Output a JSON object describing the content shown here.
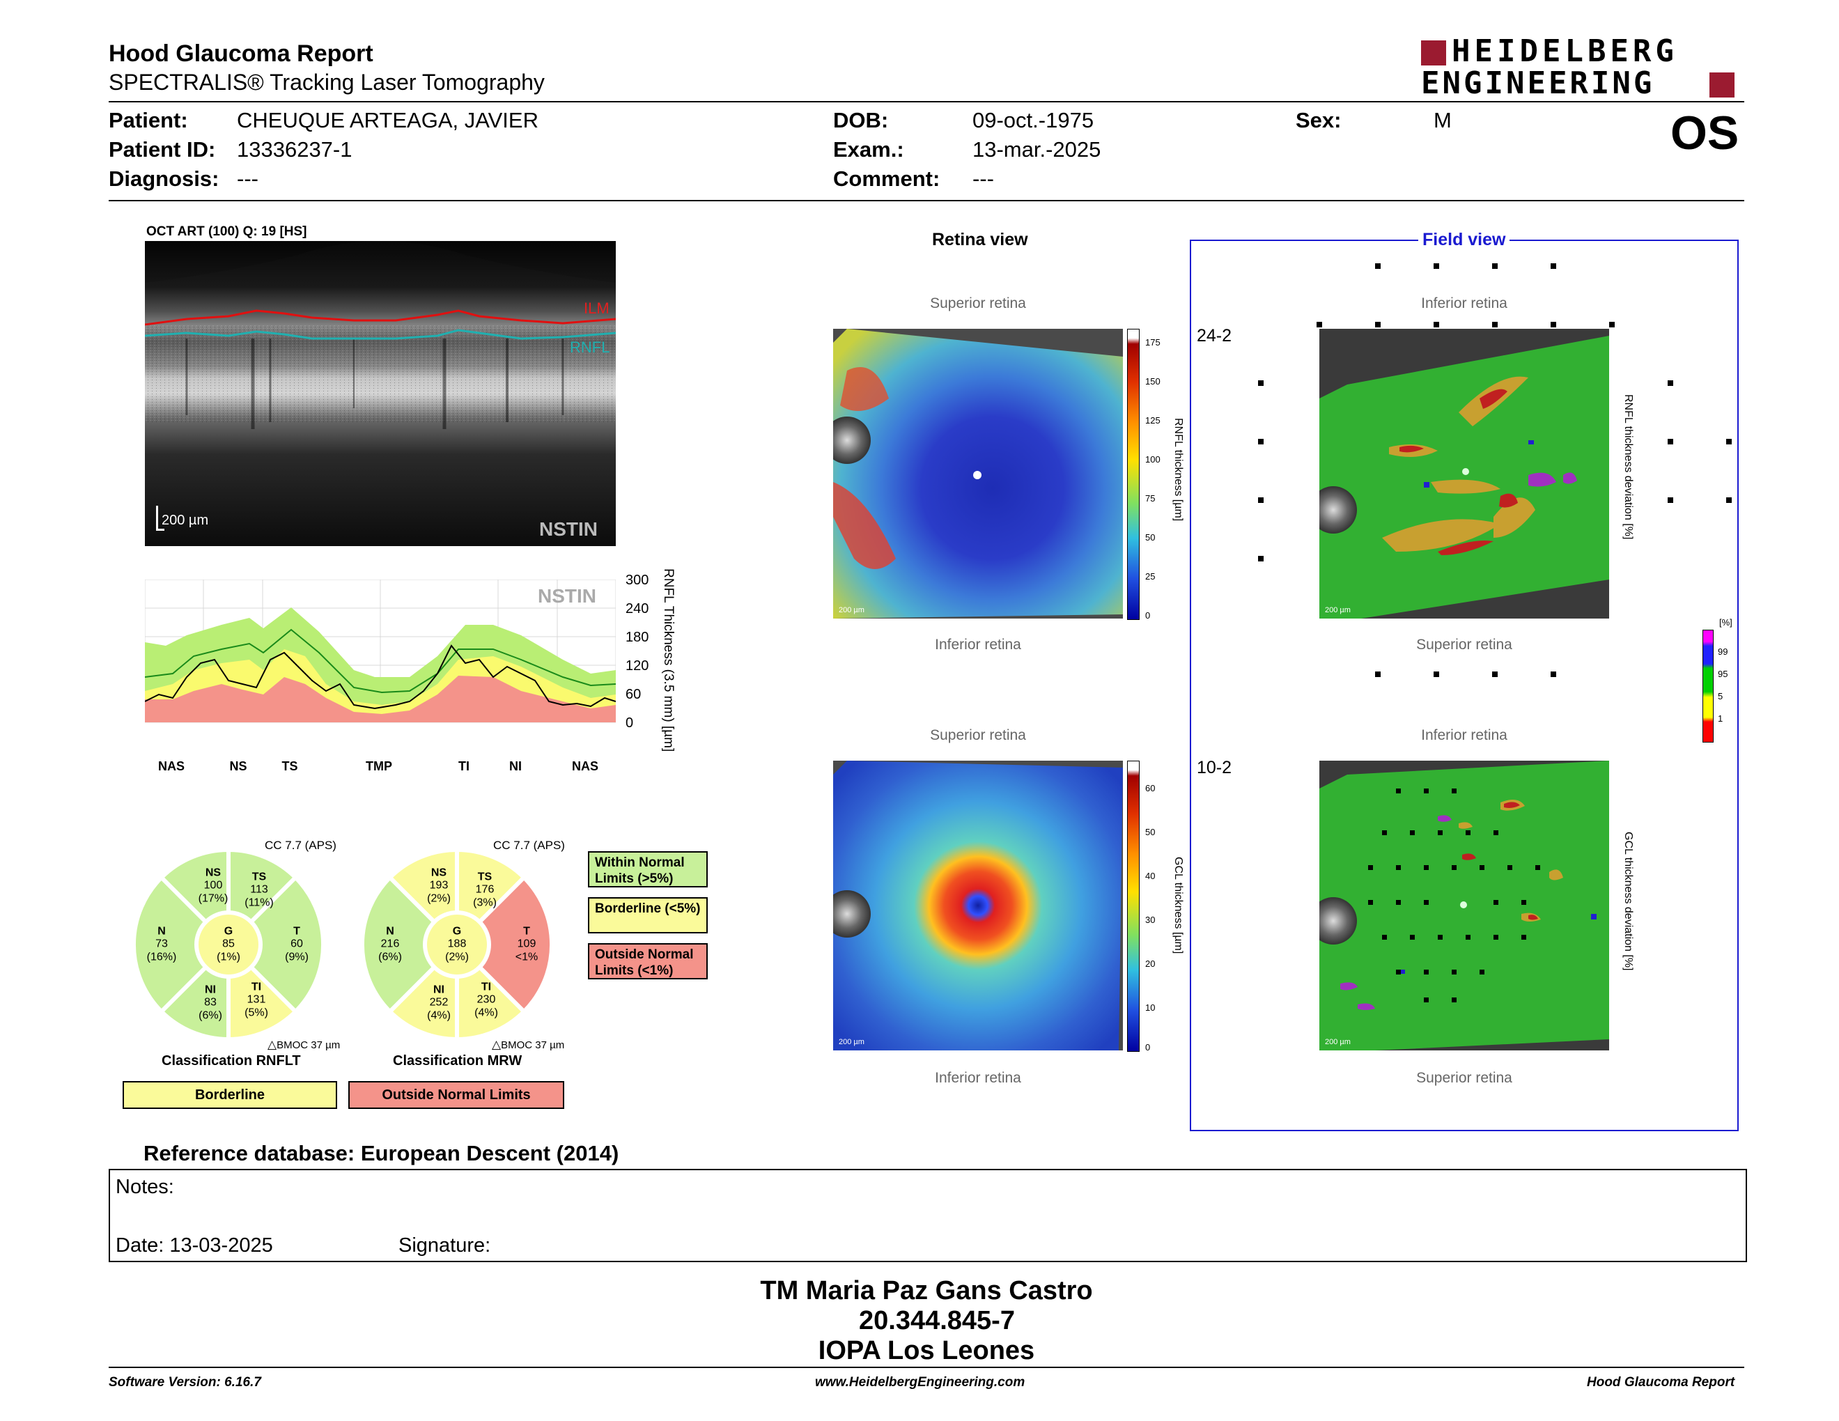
{
  "header": {
    "title": "Hood Glaucoma Report",
    "subtitle": "SPECTRALIS® Tracking Laser Tomography",
    "logo_line1": "HEIDELBERG",
    "logo_line2": "ENGINEERING",
    "eye": "OS"
  },
  "patient": {
    "patient_label": "Patient:",
    "patient_value": "CHEUQUE ARTEAGA, JAVIER",
    "id_label": "Patient ID:",
    "id_value": "13336237-1",
    "diagnosis_label": "Diagnosis:",
    "diagnosis_value": "---",
    "dob_label": "DOB:",
    "dob_value": "09-oct.-1975",
    "exam_label": "Exam.:",
    "exam_value": "13-mar.-2025",
    "comment_label": "Comment:",
    "comment_value": "---",
    "sex_label": "Sex:",
    "sex_value": "M"
  },
  "oct": {
    "header": "OCT ART (100) Q: 19 [HS]",
    "ilm": "ILM",
    "rnfl": "RNFL",
    "scale": "200 µm",
    "nstin": "NSTIN"
  },
  "profile": {
    "nstin": "NSTIN",
    "ylabel": "RNFL Thickness (3.5 mm) [µm]",
    "yticks": [
      "300",
      "240",
      "180",
      "120",
      "60",
      "0"
    ],
    "xlabels": [
      "NAS",
      "NS",
      "TS",
      "TMP",
      "TI",
      "NI",
      "NAS"
    ]
  },
  "rnflt": {
    "cc": "CC 7.7 (APS)",
    "bmo": "BMOC 37 µm",
    "classification_label": "Classification RNFLT",
    "result": "Borderline",
    "sectors": {
      "NS": {
        "name": "NS",
        "value": "100",
        "pct": "(17%)",
        "color": "#c8f09a"
      },
      "TS": {
        "name": "TS",
        "value": "113",
        "pct": "(11%)",
        "color": "#c8f09a"
      },
      "N": {
        "name": "N",
        "value": "73",
        "pct": "(16%)",
        "color": "#c8f09a"
      },
      "G": {
        "name": "G",
        "value": "85",
        "pct": "(1%)",
        "color": "#fafa9a"
      },
      "T": {
        "name": "T",
        "value": "60",
        "pct": "(9%)",
        "color": "#c8f09a"
      },
      "NI": {
        "name": "NI",
        "value": "83",
        "pct": "(6%)",
        "color": "#c8f09a"
      },
      "TI": {
        "name": "TI",
        "value": "131",
        "pct": "(5%)",
        "color": "#fafa9a"
      }
    }
  },
  "mrw": {
    "cc": "CC 7.7 (APS)",
    "bmo": "BMOC 37 µm",
    "classification_label": "Classification MRW",
    "result": "Outside Normal Limits",
    "sectors": {
      "NS": {
        "name": "NS",
        "value": "193",
        "pct": "(2%)",
        "color": "#fafa9a"
      },
      "TS": {
        "name": "TS",
        "value": "176",
        "pct": "(3%)",
        "color": "#fafa9a"
      },
      "N": {
        "name": "N",
        "value": "216",
        "pct": "(6%)",
        "color": "#c8f09a"
      },
      "G": {
        "name": "G",
        "value": "188",
        "pct": "(2%)",
        "color": "#fafa9a"
      },
      "T": {
        "name": "T",
        "value": "109",
        "pct": "<1%",
        "color": "#f4938a"
      },
      "NI": {
        "name": "NI",
        "value": "252",
        "pct": "(4%)",
        "color": "#fafa9a"
      },
      "TI": {
        "name": "TI",
        "value": "230",
        "pct": "(4%)",
        "color": "#fafa9a"
      }
    }
  },
  "legend": {
    "within": "Within Normal Limits (>5%)",
    "borderline": "Borderline (<5%)",
    "outside": "Outside Normal Limits (<1%)",
    "colors": {
      "within": "#c8f09a",
      "borderline": "#fafa9a",
      "outside": "#f4938a"
    }
  },
  "retina_view": {
    "title": "Retina view",
    "top_superior": "Superior retina",
    "top_inferior": "Inferior retina",
    "bottom_superior": "Superior retina",
    "bottom_inferior": "Inferior retina",
    "scale": "200 µm",
    "rnfl_axis": "RNFL thickness [µm]",
    "rnfl_ticks": [
      "175",
      "150",
      "125",
      "100",
      "75",
      "50",
      "25",
      "0"
    ],
    "gcl_axis": "GCL thickness [µm]",
    "gcl_ticks": [
      "60",
      "50",
      "40",
      "30",
      "20",
      "10",
      "0"
    ]
  },
  "field_view": {
    "title": "Field view",
    "label_242": "24-2",
    "label_102": "10-2",
    "top_inferior": "Inferior retina",
    "top_superior": "Superior retina",
    "bottom_inferior": "Inferior retina",
    "bottom_superior": "Superior retina",
    "scale": "200 µm",
    "rnfl_dev_axis": "RNFL thickness deviation [%]",
    "gcl_dev_axis": "GCL thickness deviation [%]",
    "pct_label": "[%]",
    "pct_ticks": [
      "99",
      "95",
      "5",
      "1"
    ]
  },
  "reference": "Reference database: European Descent (2014)",
  "notes": {
    "notes_label": "Notes:",
    "date_label": "Date: 13-03-2025",
    "signature_label": "Signature:"
  },
  "stamp": {
    "line1": "TM Maria Paz Gans Castro",
    "line2": "20.344.845-7",
    "line3": "IOPA Los Leones"
  },
  "footer": {
    "software": "Software Version: 6.16.7",
    "website": "www.HeidelbergEngineering.com",
    "report": "Hood Glaucoma Report"
  }
}
